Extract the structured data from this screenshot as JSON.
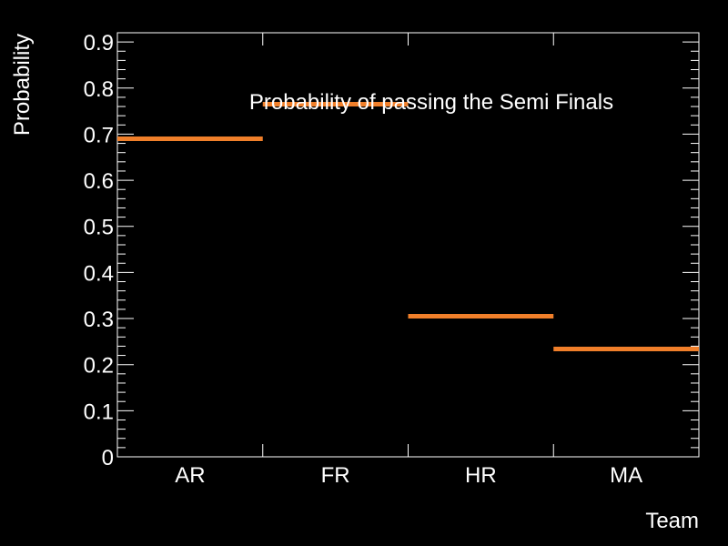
{
  "chart_data": {
    "type": "bar",
    "title": "Probability of passing the Semi Finals",
    "xlabel": "Team",
    "ylabel": "Probability",
    "categories": [
      "AR",
      "FR",
      "HR",
      "MA"
    ],
    "values": [
      0.69,
      0.765,
      0.305,
      0.234
    ],
    "ylim": [
      0,
      0.92
    ],
    "yticks": [
      "0",
      "0.1",
      "0.2",
      "0.3",
      "0.4",
      "0.5",
      "0.6",
      "0.7",
      "0.8",
      "0.9"
    ],
    "grid": false,
    "legend": "none",
    "colors": {
      "background": "#000000",
      "axes": "#ffffff",
      "series": "#f07f2a"
    }
  }
}
